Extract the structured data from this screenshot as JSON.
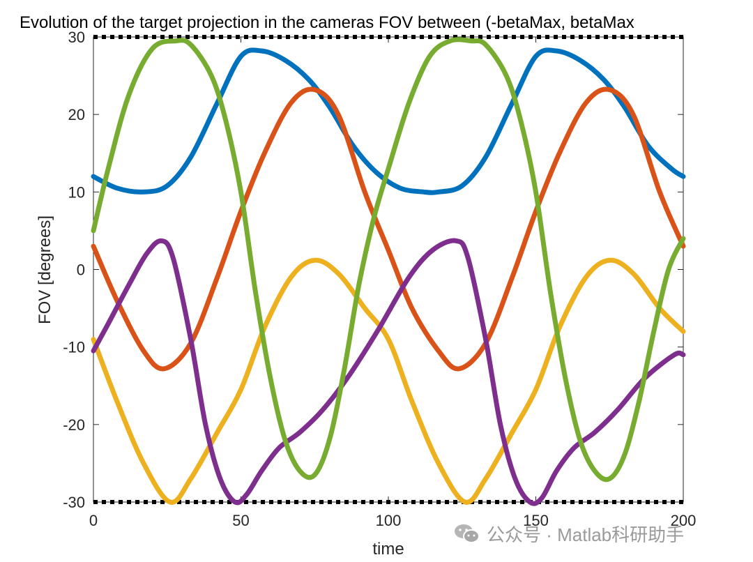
{
  "chart_data": {
    "type": "line",
    "title": "Evolution of the target projection in the cameras FOV between (-betaMax, betaMax",
    "xlabel": "time",
    "ylabel": "FOV [degrees]",
    "xlim": [
      0,
      200
    ],
    "ylim": [
      -30,
      30
    ],
    "xticks": [
      0,
      50,
      100,
      150,
      200
    ],
    "yticks": [
      -30,
      -20,
      -10,
      0,
      10,
      20,
      30
    ],
    "grid": false,
    "legend": "none",
    "bounds": {
      "values": [
        -30,
        30
      ],
      "color": "#000000",
      "style": "dotted"
    },
    "series": [
      {
        "color": "#0072BD",
        "x": [
          0,
          8,
          17,
          25,
          33,
          42,
          50,
          57,
          65,
          73,
          80,
          88,
          96,
          104,
          112,
          117,
          125,
          133,
          142,
          150,
          157,
          165,
          173,
          180,
          188,
          196,
          200
        ],
        "y": [
          12,
          10.5,
          10,
          10.8,
          14.5,
          21.5,
          27.5,
          28.2,
          27,
          24.5,
          21,
          16,
          12.5,
          10.5,
          10,
          10,
          10.8,
          14.5,
          21.5,
          27.5,
          28.2,
          27,
          24.5,
          21,
          16,
          13,
          12
        ]
      },
      {
        "color": "#D95319",
        "x": [
          0,
          8,
          17,
          24,
          33,
          42,
          50,
          58,
          67,
          75,
          83,
          92,
          100,
          108,
          117,
          124,
          133,
          142,
          150,
          158,
          167,
          175,
          183,
          192,
          200
        ],
        "y": [
          3,
          -4,
          -10.5,
          -12.8,
          -9.5,
          -1,
          7.5,
          15,
          21.5,
          23.2,
          20,
          10,
          2.5,
          -5,
          -10.5,
          -12.8,
          -9.5,
          -1,
          7.5,
          15,
          21.5,
          23.2,
          20,
          10,
          3
        ]
      },
      {
        "color": "#EDB120",
        "x": [
          0,
          8,
          17,
          26,
          33,
          42,
          50,
          58,
          67,
          75,
          83,
          92,
          100,
          108,
          117,
          126,
          133,
          142,
          150,
          158,
          167,
          175,
          183,
          192,
          200
        ],
        "y": [
          -9,
          -17,
          -25,
          -30,
          -27,
          -21,
          -15.5,
          -7.5,
          -1,
          1.2,
          -0.5,
          -5,
          -9,
          -17,
          -25,
          -30,
          -27,
          -21,
          -15.5,
          -7.5,
          -1,
          1.2,
          -0.5,
          -5,
          -8
        ]
      },
      {
        "color": "#7E2F8E",
        "x": [
          0,
          5,
          12,
          18,
          23,
          27,
          33,
          38,
          43,
          48,
          52,
          57,
          63,
          70,
          78,
          87,
          97,
          107,
          115,
          123,
          127,
          133,
          138,
          143,
          148,
          152,
          157,
          163,
          170,
          178,
          187,
          197,
          200
        ],
        "y": [
          -10.5,
          -7,
          -2,
          2,
          3.7,
          1.5,
          -9,
          -20,
          -27,
          -30,
          -29,
          -26,
          -23,
          -21,
          -18,
          -13.5,
          -7.5,
          -1,
          2.5,
          3.7,
          1.5,
          -9,
          -20,
          -27,
          -30,
          -29.5,
          -26,
          -23,
          -21,
          -18,
          -14,
          -11,
          -11
        ]
      },
      {
        "color": "#77AC30",
        "x": [
          0,
          5,
          12,
          20,
          28,
          33,
          40,
          45,
          50,
          55,
          60,
          65,
          70,
          75,
          80,
          85,
          90,
          95,
          100,
          107,
          114,
          121,
          128,
          133,
          140,
          145,
          150,
          155,
          160,
          165,
          170,
          175,
          180,
          185,
          190,
          195,
          200
        ],
        "y": [
          5,
          13,
          22.5,
          28.5,
          29.5,
          29,
          25,
          19,
          10,
          -3,
          -14,
          -22,
          -26,
          -26.5,
          -22,
          -13,
          -2,
          6.5,
          13,
          21.5,
          27.5,
          29.5,
          29.5,
          29,
          25,
          19,
          10,
          -3,
          -14,
          -22,
          -26,
          -27,
          -24,
          -17,
          -8,
          0,
          4
        ]
      }
    ]
  },
  "watermark": {
    "text": "公众号 · Matlab科研助手",
    "icon": "wechat-icon"
  }
}
